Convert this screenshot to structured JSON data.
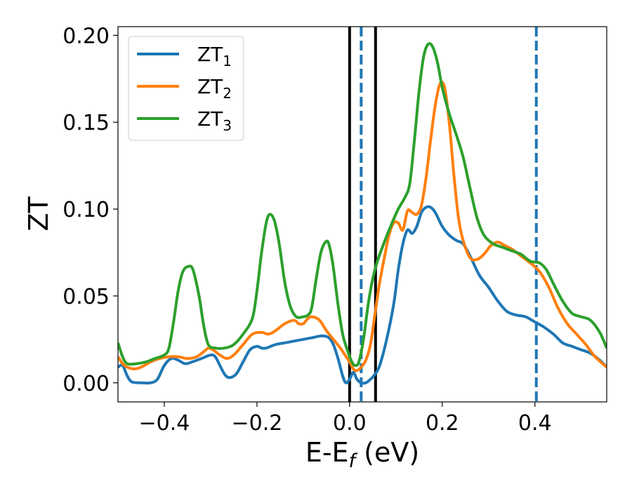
{
  "chart_data": {
    "type": "line",
    "title": "",
    "xlabel": "E-E",
    "xlabel_sub": "f",
    "xlabel_unit": " (eV)",
    "ylabel": "ZT",
    "xlim": [
      -0.5,
      0.555
    ],
    "ylim": [
      -0.011,
      0.205
    ],
    "xticks": [
      -0.4,
      -0.2,
      0.0,
      0.2,
      0.4
    ],
    "xtick_labels": [
      "−0.4",
      "−0.2",
      "0.0",
      "0.2",
      "0.4"
    ],
    "yticks": [
      0.0,
      0.05,
      0.1,
      0.15,
      0.2
    ],
    "ytick_labels": [
      "0.00",
      "0.05",
      "0.10",
      "0.15",
      "0.20"
    ],
    "legend_position": "top-left",
    "vlines": [
      {
        "x": 0.0,
        "style": "solid",
        "color": "#000000"
      },
      {
        "x": 0.056,
        "style": "solid",
        "color": "#000000"
      },
      {
        "x": 0.025,
        "style": "dashed",
        "color": "#1f77b4"
      },
      {
        "x": 0.403,
        "style": "dashed",
        "color": "#1f77b4"
      }
    ],
    "series": [
      {
        "name": "ZT",
        "sub": "1",
        "color": "#1f77b4",
        "points": [
          [
            -0.5,
            0.009
          ],
          [
            -0.49,
            0.01
          ],
          [
            -0.48,
            0.004
          ],
          [
            -0.47,
            0.0005
          ],
          [
            -0.45,
            0.0
          ],
          [
            -0.43,
            0.0
          ],
          [
            -0.415,
            0.002
          ],
          [
            -0.4,
            0.01
          ],
          [
            -0.385,
            0.014
          ],
          [
            -0.37,
            0.013
          ],
          [
            -0.355,
            0.011
          ],
          [
            -0.34,
            0.012
          ],
          [
            -0.32,
            0.014
          ],
          [
            -0.3,
            0.016
          ],
          [
            -0.29,
            0.015
          ],
          [
            -0.28,
            0.01
          ],
          [
            -0.27,
            0.005
          ],
          [
            -0.26,
            0.003
          ],
          [
            -0.245,
            0.005
          ],
          [
            -0.23,
            0.012
          ],
          [
            -0.215,
            0.019
          ],
          [
            -0.2,
            0.021
          ],
          [
            -0.19,
            0.02
          ],
          [
            -0.18,
            0.02
          ],
          [
            -0.16,
            0.022
          ],
          [
            -0.14,
            0.023
          ],
          [
            -0.12,
            0.024
          ],
          [
            -0.1,
            0.025
          ],
          [
            -0.08,
            0.026
          ],
          [
            -0.06,
            0.027
          ],
          [
            -0.045,
            0.026
          ],
          [
            -0.035,
            0.022
          ],
          [
            -0.025,
            0.014
          ],
          [
            -0.015,
            0.004
          ],
          [
            -0.008,
            0.0
          ],
          [
            0.0,
            0.002
          ],
          [
            0.008,
            0.006
          ],
          [
            0.016,
            0.002
          ],
          [
            0.025,
            0.0
          ],
          [
            0.035,
            0.0
          ],
          [
            0.045,
            0.002
          ],
          [
            0.055,
            0.005
          ],
          [
            0.065,
            0.01
          ],
          [
            0.08,
            0.025
          ],
          [
            0.095,
            0.045
          ],
          [
            0.105,
            0.065
          ],
          [
            0.115,
            0.08
          ],
          [
            0.125,
            0.088
          ],
          [
            0.135,
            0.086
          ],
          [
            0.145,
            0.09
          ],
          [
            0.155,
            0.098
          ],
          [
            0.165,
            0.101
          ],
          [
            0.175,
            0.101
          ],
          [
            0.185,
            0.098
          ],
          [
            0.2,
            0.09
          ],
          [
            0.215,
            0.085
          ],
          [
            0.23,
            0.082
          ],
          [
            0.245,
            0.08
          ],
          [
            0.26,
            0.073
          ],
          [
            0.28,
            0.062
          ],
          [
            0.3,
            0.055
          ],
          [
            0.32,
            0.047
          ],
          [
            0.34,
            0.041
          ],
          [
            0.36,
            0.039
          ],
          [
            0.38,
            0.038
          ],
          [
            0.4,
            0.035
          ],
          [
            0.42,
            0.032
          ],
          [
            0.44,
            0.028
          ],
          [
            0.46,
            0.023
          ],
          [
            0.48,
            0.021
          ],
          [
            0.5,
            0.019
          ],
          [
            0.52,
            0.017
          ],
          [
            0.54,
            0.013
          ],
          [
            0.555,
            0.009
          ]
        ]
      },
      {
        "name": "ZT",
        "sub": "2",
        "color": "#ff7f0e",
        "points": [
          [
            -0.5,
            0.015
          ],
          [
            -0.49,
            0.011
          ],
          [
            -0.48,
            0.009
          ],
          [
            -0.465,
            0.008
          ],
          [
            -0.45,
            0.009
          ],
          [
            -0.43,
            0.012
          ],
          [
            -0.41,
            0.014
          ],
          [
            -0.39,
            0.015
          ],
          [
            -0.37,
            0.015
          ],
          [
            -0.35,
            0.014
          ],
          [
            -0.33,
            0.015
          ],
          [
            -0.31,
            0.019
          ],
          [
            -0.305,
            0.02
          ],
          [
            -0.295,
            0.019
          ],
          [
            -0.28,
            0.016
          ],
          [
            -0.265,
            0.014
          ],
          [
            -0.25,
            0.016
          ],
          [
            -0.23,
            0.022
          ],
          [
            -0.21,
            0.028
          ],
          [
            -0.19,
            0.029
          ],
          [
            -0.175,
            0.028
          ],
          [
            -0.16,
            0.03
          ],
          [
            -0.14,
            0.034
          ],
          [
            -0.12,
            0.036
          ],
          [
            -0.11,
            0.034
          ],
          [
            -0.1,
            0.034
          ],
          [
            -0.09,
            0.037
          ],
          [
            -0.08,
            0.038
          ],
          [
            -0.065,
            0.036
          ],
          [
            -0.05,
            0.03
          ],
          [
            -0.035,
            0.025
          ],
          [
            -0.02,
            0.02
          ],
          [
            -0.01,
            0.016
          ],
          [
            0.0,
            0.012
          ],
          [
            0.008,
            0.008
          ],
          [
            0.015,
            0.007
          ],
          [
            0.025,
            0.009
          ],
          [
            0.035,
            0.013
          ],
          [
            0.045,
            0.022
          ],
          [
            0.055,
            0.04
          ],
          [
            0.065,
            0.058
          ],
          [
            0.075,
            0.072
          ],
          [
            0.085,
            0.085
          ],
          [
            0.095,
            0.092
          ],
          [
            0.105,
            0.092
          ],
          [
            0.115,
            0.088
          ],
          [
            0.125,
            0.099
          ],
          [
            0.135,
            0.098
          ],
          [
            0.145,
            0.097
          ],
          [
            0.155,
            0.102
          ],
          [
            0.165,
            0.118
          ],
          [
            0.175,
            0.14
          ],
          [
            0.185,
            0.16
          ],
          [
            0.195,
            0.172
          ],
          [
            0.205,
            0.17
          ],
          [
            0.215,
            0.15
          ],
          [
            0.225,
            0.12
          ],
          [
            0.235,
            0.095
          ],
          [
            0.245,
            0.082
          ],
          [
            0.26,
            0.072
          ],
          [
            0.275,
            0.071
          ],
          [
            0.29,
            0.074
          ],
          [
            0.305,
            0.079
          ],
          [
            0.32,
            0.081
          ],
          [
            0.335,
            0.079
          ],
          [
            0.35,
            0.077
          ],
          [
            0.37,
            0.073
          ],
          [
            0.39,
            0.069
          ],
          [
            0.41,
            0.064
          ],
          [
            0.43,
            0.055
          ],
          [
            0.45,
            0.043
          ],
          [
            0.47,
            0.034
          ],
          [
            0.49,
            0.028
          ],
          [
            0.51,
            0.022
          ],
          [
            0.53,
            0.015
          ],
          [
            0.555,
            0.009
          ]
        ]
      },
      {
        "name": "ZT",
        "sub": "3",
        "color": "#2ca02c",
        "points": [
          [
            -0.5,
            0.023
          ],
          [
            -0.49,
            0.015
          ],
          [
            -0.48,
            0.011
          ],
          [
            -0.46,
            0.011
          ],
          [
            -0.44,
            0.012
          ],
          [
            -0.42,
            0.014
          ],
          [
            -0.4,
            0.016
          ],
          [
            -0.39,
            0.02
          ],
          [
            -0.38,
            0.035
          ],
          [
            -0.37,
            0.053
          ],
          [
            -0.36,
            0.064
          ],
          [
            -0.348,
            0.067
          ],
          [
            -0.338,
            0.065
          ],
          [
            -0.325,
            0.05
          ],
          [
            -0.315,
            0.033
          ],
          [
            -0.305,
            0.022
          ],
          [
            -0.29,
            0.02
          ],
          [
            -0.27,
            0.02
          ],
          [
            -0.25,
            0.022
          ],
          [
            -0.23,
            0.028
          ],
          [
            -0.21,
            0.037
          ],
          [
            -0.2,
            0.053
          ],
          [
            -0.19,
            0.075
          ],
          [
            -0.18,
            0.092
          ],
          [
            -0.172,
            0.097
          ],
          [
            -0.162,
            0.093
          ],
          [
            -0.152,
            0.08
          ],
          [
            -0.14,
            0.058
          ],
          [
            -0.128,
            0.044
          ],
          [
            -0.115,
            0.038
          ],
          [
            -0.1,
            0.038
          ],
          [
            -0.09,
            0.039
          ],
          [
            -0.082,
            0.043
          ],
          [
            -0.072,
            0.06
          ],
          [
            -0.062,
            0.075
          ],
          [
            -0.052,
            0.081
          ],
          [
            -0.045,
            0.08
          ],
          [
            -0.036,
            0.068
          ],
          [
            -0.025,
            0.045
          ],
          [
            -0.015,
            0.028
          ],
          [
            -0.005,
            0.019
          ],
          [
            0.005,
            0.012
          ],
          [
            0.012,
            0.01
          ],
          [
            0.02,
            0.012
          ],
          [
            0.03,
            0.025
          ],
          [
            0.04,
            0.045
          ],
          [
            0.05,
            0.06
          ],
          [
            0.06,
            0.07
          ],
          [
            0.075,
            0.081
          ],
          [
            0.09,
            0.091
          ],
          [
            0.105,
            0.1
          ],
          [
            0.12,
            0.107
          ],
          [
            0.13,
            0.115
          ],
          [
            0.14,
            0.14
          ],
          [
            0.15,
            0.168
          ],
          [
            0.16,
            0.188
          ],
          [
            0.17,
            0.195
          ],
          [
            0.18,
            0.193
          ],
          [
            0.19,
            0.184
          ],
          [
            0.2,
            0.17
          ],
          [
            0.215,
            0.155
          ],
          [
            0.23,
            0.143
          ],
          [
            0.245,
            0.13
          ],
          [
            0.26,
            0.112
          ],
          [
            0.275,
            0.095
          ],
          [
            0.29,
            0.085
          ],
          [
            0.31,
            0.08
          ],
          [
            0.33,
            0.078
          ],
          [
            0.35,
            0.076
          ],
          [
            0.37,
            0.074
          ],
          [
            0.39,
            0.07
          ],
          [
            0.41,
            0.069
          ],
          [
            0.425,
            0.065
          ],
          [
            0.44,
            0.057
          ],
          [
            0.46,
            0.047
          ],
          [
            0.48,
            0.04
          ],
          [
            0.5,
            0.038
          ],
          [
            0.52,
            0.036
          ],
          [
            0.54,
            0.029
          ],
          [
            0.555,
            0.02
          ]
        ]
      }
    ]
  }
}
